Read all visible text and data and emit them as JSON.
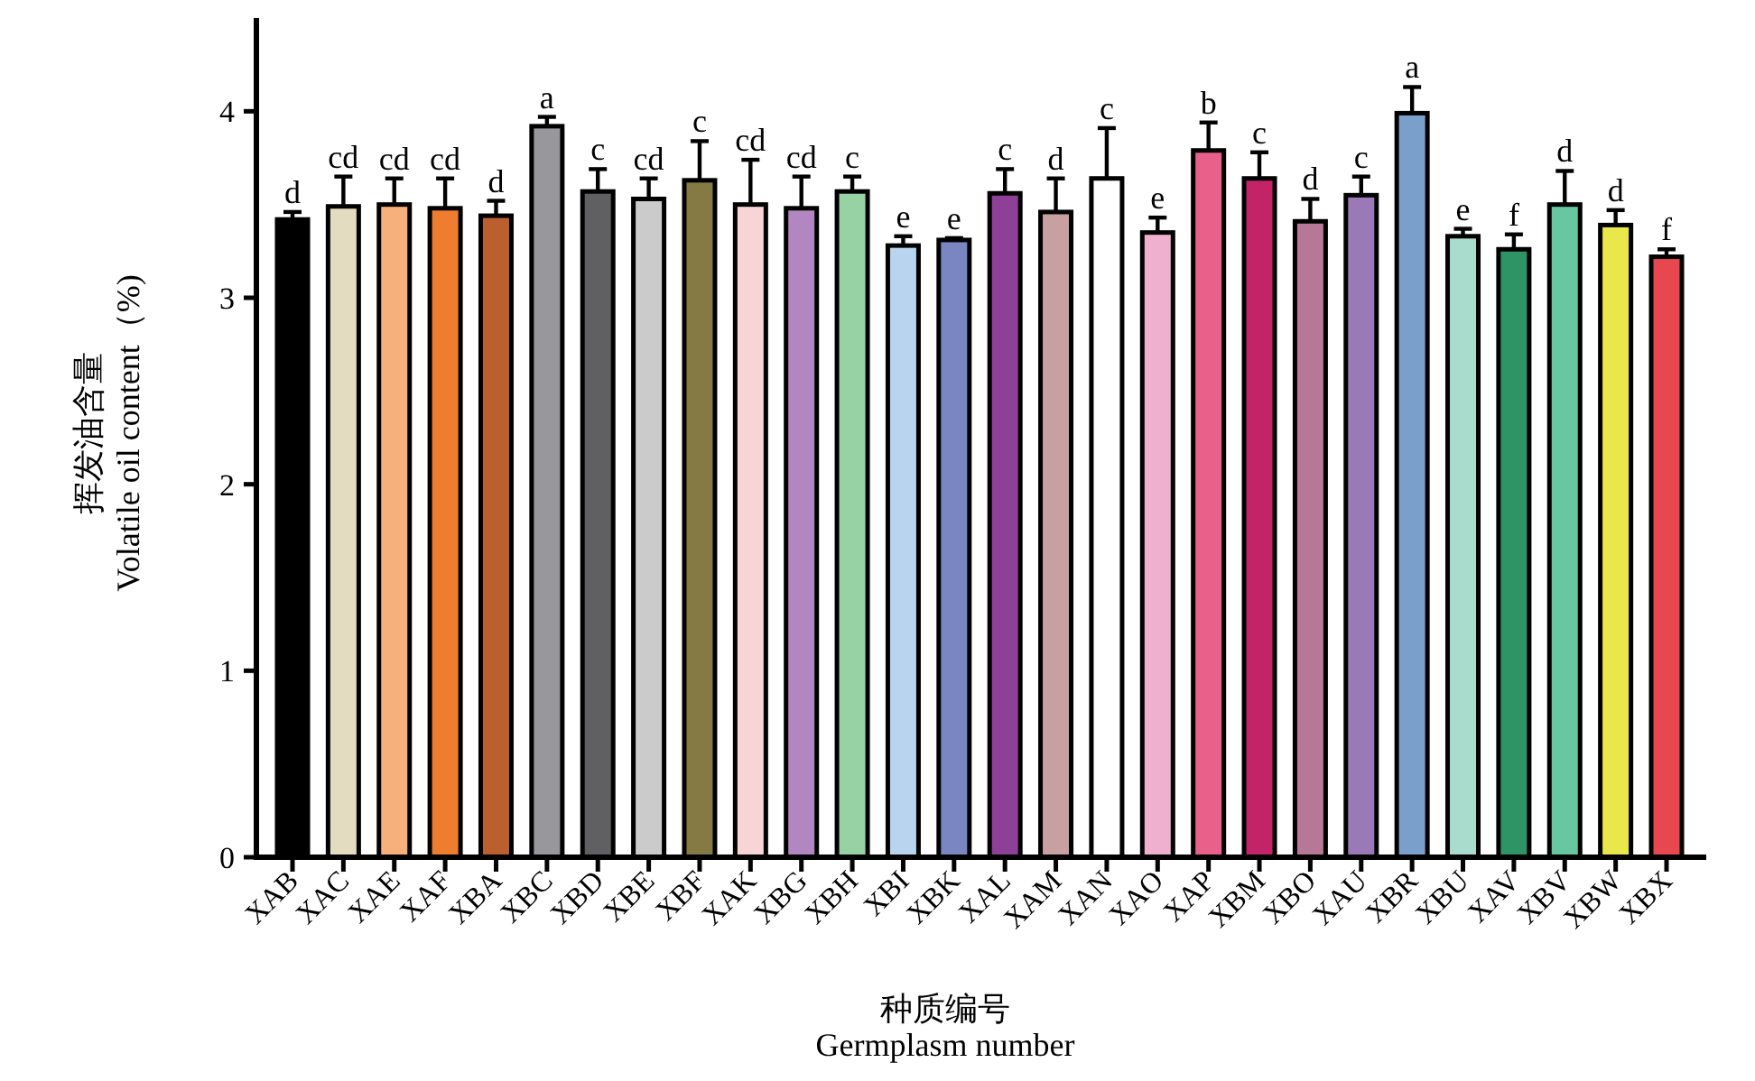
{
  "chart_data": {
    "type": "bar",
    "xlabel": "种质编号\nGermplasm number",
    "ylabel": "挥发油含量\nVolatile oil content（%)",
    "categories": [
      "XAB",
      "XAC",
      "XAE",
      "XAF",
      "XBA",
      "XBC",
      "XBD",
      "XBE",
      "XBF",
      "XAK",
      "XBG",
      "XBH",
      "XBI",
      "XBK",
      "XAL",
      "XAM",
      "XAN",
      "XAO",
      "XAP",
      "XBM",
      "XBO",
      "XAU",
      "XBR",
      "XBU",
      "XAV",
      "XBV",
      "XBW",
      "XBX"
    ],
    "values": [
      3.42,
      3.49,
      3.5,
      3.48,
      3.44,
      3.92,
      3.57,
      3.53,
      3.63,
      3.5,
      3.48,
      3.57,
      3.28,
      3.31,
      3.56,
      3.46,
      3.64,
      3.35,
      3.79,
      3.64,
      3.41,
      3.55,
      3.99,
      3.33,
      3.26,
      3.5,
      3.39,
      3.22
    ],
    "errors": [
      0.04,
      0.16,
      0.14,
      0.16,
      0.08,
      0.05,
      0.12,
      0.11,
      0.21,
      0.24,
      0.17,
      0.08,
      0.05,
      0.01,
      0.13,
      0.18,
      0.27,
      0.08,
      0.15,
      0.14,
      0.12,
      0.1,
      0.14,
      0.04,
      0.08,
      0.18,
      0.08,
      0.04
    ],
    "colors": [
      "#000000",
      "#e3dcc0",
      "#f7b07c",
      "#ee7d30",
      "#bb5f2e",
      "#98989c",
      "#606062",
      "#cbcbcb",
      "#857a44",
      "#f7d5d6",
      "#b286c0",
      "#96d2a4",
      "#b8d4ee",
      "#7a86c2",
      "#8e3f97",
      "#c9a0a2",
      "#ffffff",
      "#efb0d0",
      "#e9608a",
      "#c32468",
      "#b77897",
      "#9b78b6",
      "#7b9fcb",
      "#a9dccc",
      "#2e9466",
      "#66c7a1",
      "#e8e84a",
      "#e8474f"
    ],
    "ylim": [
      0,
      4.5
    ],
    "yticks": [
      0,
      1,
      2,
      3,
      4
    ],
    "grid": false,
    "annotations": [
      {
        "text": "d",
        "x": "XAB",
        "y": 3.46
      },
      {
        "text": "cd",
        "x": "XAC",
        "y": 3.65
      },
      {
        "text": "cd",
        "x": "XAE",
        "y": 3.64
      },
      {
        "text": "cd",
        "x": "XAF",
        "y": 3.64
      },
      {
        "text": "d",
        "x": "XBA",
        "y": 3.52
      },
      {
        "text": "a",
        "x": "XBC",
        "y": 3.97
      },
      {
        "text": "c",
        "x": "XBD",
        "y": 3.69
      },
      {
        "text": "cd",
        "x": "XBE",
        "y": 3.64
      },
      {
        "text": "c",
        "x": "XBF",
        "y": 3.84
      },
      {
        "text": "cd",
        "x": "XAK",
        "y": 3.74
      },
      {
        "text": "cd",
        "x": "XBG",
        "y": 3.65
      },
      {
        "text": "c",
        "x": "XBH",
        "y": 3.65
      },
      {
        "text": "e",
        "x": "XBI",
        "y": 3.33
      },
      {
        "text": "e",
        "x": "XBK",
        "y": 3.32
      },
      {
        "text": "c",
        "x": "XAL",
        "y": 3.69
      },
      {
        "text": "d",
        "x": "XAM",
        "y": 3.64
      },
      {
        "text": "c",
        "x": "XAN",
        "y": 3.91
      },
      {
        "text": "e",
        "x": "XAO",
        "y": 3.43
      },
      {
        "text": "b",
        "x": "XAP",
        "y": 3.94
      },
      {
        "text": "c",
        "x": "XBM",
        "y": 3.78
      },
      {
        "text": "d",
        "x": "XBO",
        "y": 3.53
      },
      {
        "text": "c",
        "x": "XAU",
        "y": 3.65
      },
      {
        "text": "a",
        "x": "XBR",
        "y": 4.13
      },
      {
        "text": "e",
        "x": "XBU",
        "y": 3.37
      },
      {
        "text": "f",
        "x": "XAV",
        "y": 3.34
      },
      {
        "text": "d",
        "x": "XBV",
        "y": 3.68
      },
      {
        "text": "d",
        "x": "XBW",
        "y": 3.47
      },
      {
        "text": "f",
        "x": "XBX",
        "y": 3.26
      }
    ]
  }
}
